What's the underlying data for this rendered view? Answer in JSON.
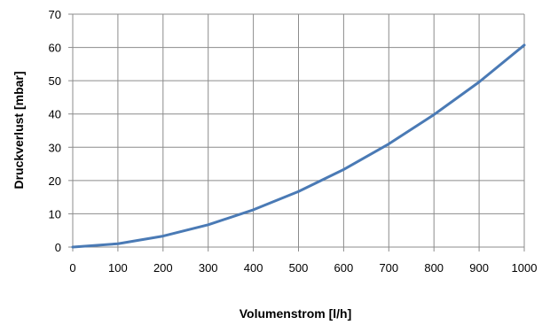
{
  "chart_data": {
    "type": "line",
    "title": "",
    "xlabel": "Volumenstrom [l/h]",
    "ylabel": "Druckverlust [mbar]",
    "xlim": [
      0,
      1000
    ],
    "ylim": [
      0,
      70
    ],
    "x_ticks": [
      "0",
      "100",
      "200",
      "300",
      "400",
      "500",
      "600",
      "700",
      "800",
      "900",
      "1000"
    ],
    "y_ticks": [
      "0",
      "10",
      "20",
      "30",
      "40",
      "50",
      "60",
      "70"
    ],
    "grid": true,
    "legend": "none",
    "series": [
      {
        "color": "#4a7ab5",
        "x": [
          0,
          100,
          200,
          300,
          400,
          500,
          600,
          700,
          800,
          900,
          1000
        ],
        "y": [
          0,
          1,
          3.3,
          6.7,
          11.2,
          16.7,
          23.3,
          31.0,
          39.8,
          49.6,
          60.7
        ]
      }
    ]
  }
}
